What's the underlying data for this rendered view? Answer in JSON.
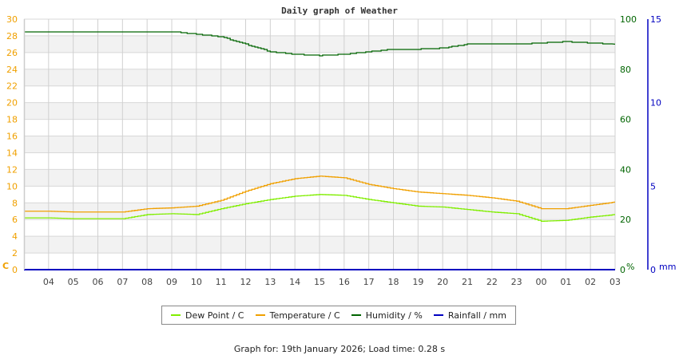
{
  "chart_data": {
    "type": "line",
    "title": "Daily graph of Weather",
    "xlabel": "",
    "x": [
      "03",
      "04",
      "05",
      "06",
      "07",
      "08",
      "09",
      "10",
      "11",
      "12",
      "13",
      "14",
      "15",
      "16",
      "17",
      "18",
      "19",
      "20",
      "21",
      "22",
      "23",
      "00",
      "01",
      "02",
      "03"
    ],
    "x_tick_labels": [
      "04",
      "05",
      "06",
      "07",
      "08",
      "09",
      "10",
      "11",
      "12",
      "13",
      "14",
      "15",
      "16",
      "17",
      "18",
      "19",
      "20",
      "21",
      "22",
      "23",
      "00",
      "01",
      "02",
      "03"
    ],
    "axes": {
      "left": {
        "label": "C",
        "ylim": [
          0,
          30
        ],
        "ticks": [
          "0",
          "2",
          "4",
          "6",
          "8",
          "10",
          "12",
          "14",
          "16",
          "18",
          "20",
          "22",
          "24",
          "26",
          "28",
          "30"
        ],
        "color": "#f0a000"
      },
      "right": {
        "label": "%",
        "ylim": [
          0,
          100
        ],
        "ticks": [
          "0",
          "20",
          "40",
          "60",
          "80",
          "100"
        ],
        "color": "#006400"
      },
      "right2": {
        "label": "mm",
        "ylim": [
          0,
          15
        ],
        "ticks": [
          "0",
          "5",
          "10",
          "15"
        ],
        "color": "#0000c0"
      }
    },
    "grid": true,
    "legend_position": "bottom",
    "series": [
      {
        "name": "Dew Point / C",
        "color": "#80ee00",
        "axis": "left",
        "values": [
          6.2,
          6.2,
          6.1,
          6.1,
          6.1,
          6.6,
          6.7,
          6.6,
          7.3,
          7.9,
          8.4,
          8.8,
          9.0,
          8.9,
          8.4,
          8.0,
          7.6,
          7.5,
          7.2,
          6.9,
          6.7,
          5.8,
          5.9,
          6.3,
          6.6
        ]
      },
      {
        "name": "Temperature / C",
        "color": "#f0a000",
        "axis": "left",
        "values": [
          7.0,
          7.0,
          6.9,
          6.9,
          6.9,
          7.3,
          7.4,
          7.6,
          8.3,
          9.4,
          10.3,
          10.9,
          11.2,
          11.0,
          10.2,
          9.7,
          9.3,
          9.1,
          8.9,
          8.6,
          8.2,
          7.3,
          7.3,
          7.7,
          8.1
        ]
      },
      {
        "name": "Humidity / %",
        "color": "#006400",
        "axis": "right",
        "values": [
          95,
          95,
          95,
          95,
          95,
          95,
          95,
          94,
          93,
          90,
          87,
          86,
          85.5,
          86,
          87,
          88,
          88,
          88.5,
          90,
          90,
          90,
          90.5,
          91,
          90.5,
          90
        ]
      },
      {
        "name": "Rainfall / mm",
        "color": "#0000c0",
        "axis": "right2",
        "values": [
          0,
          0,
          0,
          0,
          0,
          0,
          0,
          0,
          0,
          0,
          0,
          0,
          0,
          0,
          0,
          0,
          0,
          0,
          0,
          0,
          0,
          0,
          0,
          0,
          0
        ]
      }
    ]
  },
  "legend": {
    "items": [
      {
        "label": "Dew Point / C",
        "color": "#80ee00"
      },
      {
        "label": "Temperature / C",
        "color": "#f0a000"
      },
      {
        "label": "Humidity / %",
        "color": "#006400"
      },
      {
        "label": "Rainfall / mm",
        "color": "#0000c0"
      }
    ]
  },
  "footer": {
    "text": "Graph for: 19th January 2026; Load time: 0.28 s"
  }
}
